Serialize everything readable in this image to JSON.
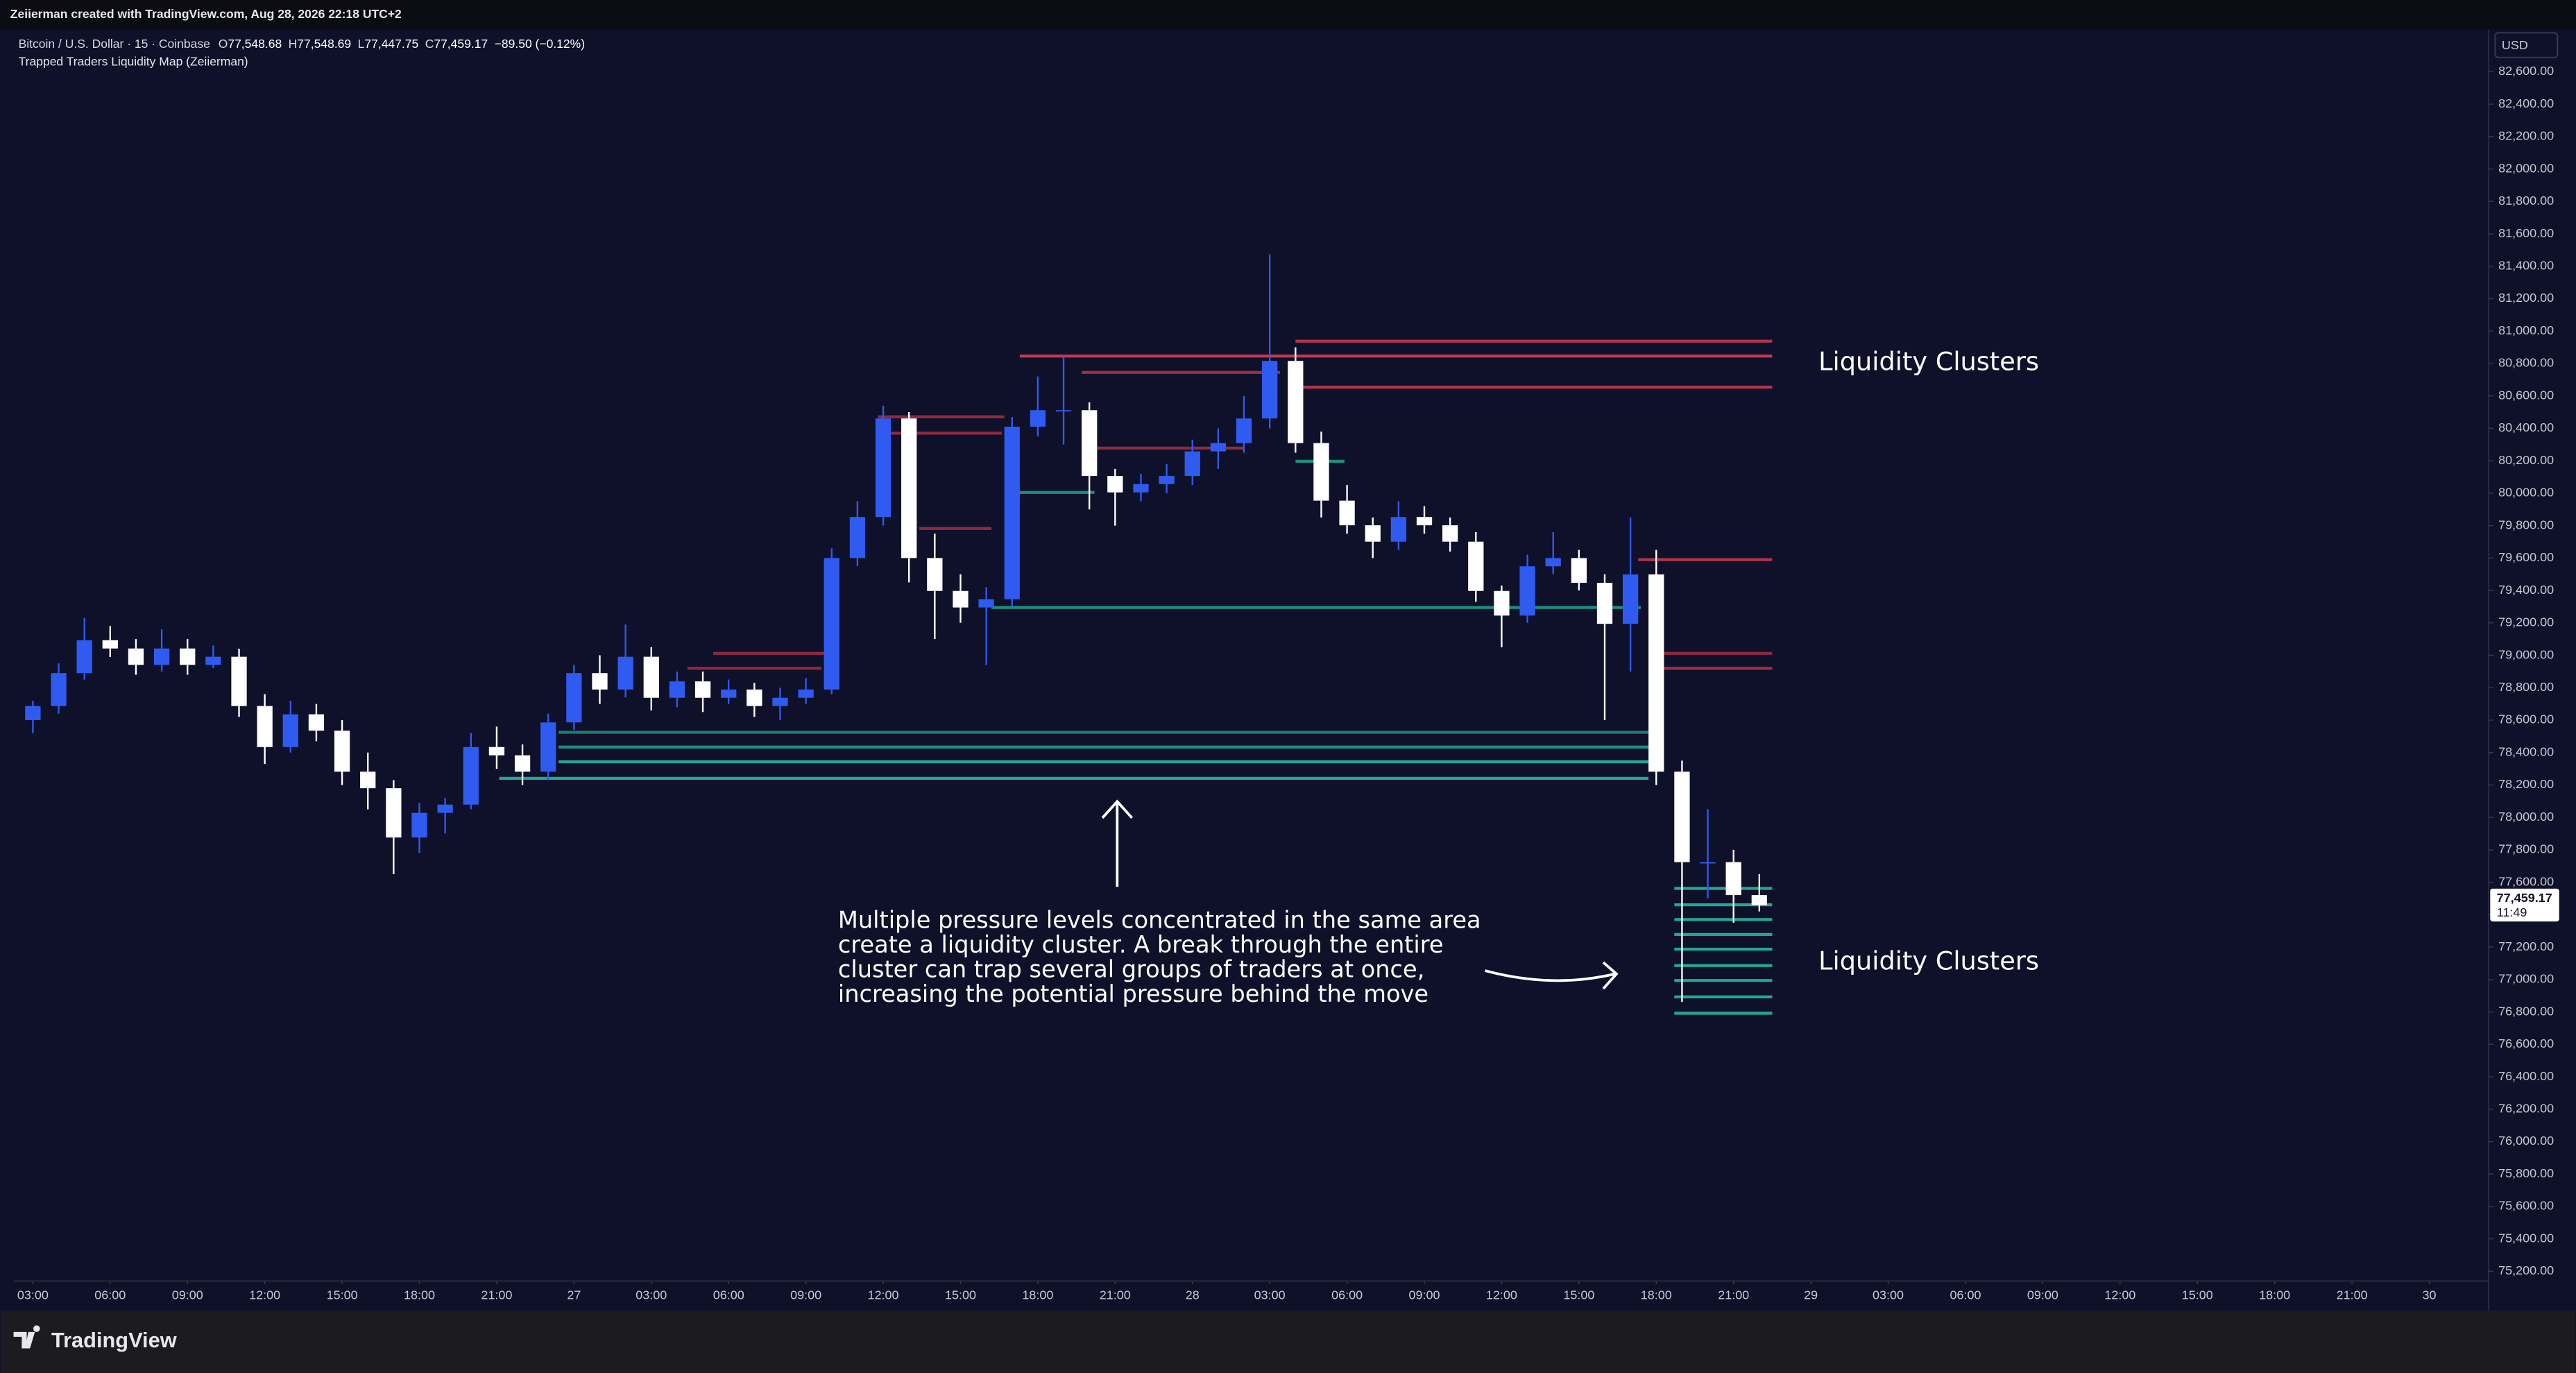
{
  "chart_data": {
    "type": "candlestick",
    "watermark_line": "Zeiierman created with TradingView.com, Aug 28, 2026 22:18 UTC+2",
    "symbol": "Bitcoin / U.S. Dollar · 15 · Coinbase",
    "legend": [
      {
        "key": "O",
        "value": "77,548.68"
      },
      {
        "key": "H",
        "value": "77,548.69"
      },
      {
        "key": "L",
        "value": "77,447.75"
      },
      {
        "key": "C",
        "value": "77,459.17"
      }
    ],
    "change": "−89.50 (−0.12%)",
    "indicator": "Trapped Traders Liquidity Map (Zeiierman)",
    "currency": "USD",
    "last_price_label": "77,459.17",
    "countdown": "11:49",
    "brand": "TradingView",
    "annotations": {
      "clusters_top": "Liquidity Clusters",
      "clusters_bottom": "Liquidity Clusters",
      "explanation": [
        "Multiple pressure levels concentrated in the same area",
        "create a liquidity cluster. A break through the entire",
        "cluster can trap several groups of traders at once,",
        "increasing the potential pressure behind the move"
      ]
    },
    "up_color": "#2f5bf0",
    "down_color": "#ffffff",
    "xlim": [
      2.25,
      98.3
    ],
    "ylim": [
      75140,
      82860
    ],
    "xticks": [
      {
        "value": 3,
        "label": "03:00"
      },
      {
        "value": 6,
        "label": "06:00"
      },
      {
        "value": 9,
        "label": "09:00"
      },
      {
        "value": 12,
        "label": "12:00"
      },
      {
        "value": 15,
        "label": "15:00"
      },
      {
        "value": 18,
        "label": "18:00"
      },
      {
        "value": 21,
        "label": "21:00"
      },
      {
        "value": 24,
        "label": "27"
      },
      {
        "value": 27,
        "label": "03:00"
      },
      {
        "value": 30,
        "label": "06:00"
      },
      {
        "value": 33,
        "label": "09:00"
      },
      {
        "value": 36,
        "label": "12:00"
      },
      {
        "value": 39,
        "label": "15:00"
      },
      {
        "value": 42,
        "label": "18:00"
      },
      {
        "value": 45,
        "label": "21:00"
      },
      {
        "value": 48,
        "label": "28"
      },
      {
        "value": 51,
        "label": "03:00"
      },
      {
        "value": 54,
        "label": "06:00"
      },
      {
        "value": 57,
        "label": "09:00"
      },
      {
        "value": 60,
        "label": "12:00"
      },
      {
        "value": 63,
        "label": "15:00"
      },
      {
        "value": 66,
        "label": "18:00"
      },
      {
        "value": 69,
        "label": "21:00"
      },
      {
        "value": 72,
        "label": "29"
      },
      {
        "value": 75,
        "label": "03:00"
      },
      {
        "value": 78,
        "label": "06:00"
      },
      {
        "value": 81,
        "label": "09:00"
      },
      {
        "value": 84,
        "label": "12:00"
      },
      {
        "value": 87,
        "label": "15:00"
      },
      {
        "value": 90,
        "label": "18:00"
      },
      {
        "value": 93,
        "label": "21:00"
      },
      {
        "value": 96,
        "label": "30"
      }
    ],
    "yticks": [
      {
        "value": 75200,
        "label": "75,200.00"
      },
      {
        "value": 75400,
        "label": "75,400.00"
      },
      {
        "value": 75600,
        "label": "75,600.00"
      },
      {
        "value": 75800,
        "label": "75,800.00"
      },
      {
        "value": 76000,
        "label": "76,000.00"
      },
      {
        "value": 76200,
        "label": "76,200.00"
      },
      {
        "value": 76400,
        "label": "76,400.00"
      },
      {
        "value": 76600,
        "label": "76,600.00"
      },
      {
        "value": 76800,
        "label": "76,800.00"
      },
      {
        "value": 77000,
        "label": "77,000.00"
      },
      {
        "value": 77200,
        "label": "77,200.00"
      },
      {
        "value": 77400,
        "label": "77,400.00"
      },
      {
        "value": 77600,
        "label": "77,600.00"
      },
      {
        "value": 77800,
        "label": "77,800.00"
      },
      {
        "value": 78000,
        "label": "78,000.00"
      },
      {
        "value": 78200,
        "label": "78,200.00"
      },
      {
        "value": 78400,
        "label": "78,400.00"
      },
      {
        "value": 78600,
        "label": "78,600.00"
      },
      {
        "value": 78800,
        "label": "78,800.00"
      },
      {
        "value": 79000,
        "label": "79,000.00"
      },
      {
        "value": 79200,
        "label": "79,200.00"
      },
      {
        "value": 79400,
        "label": "79,400.00"
      },
      {
        "value": 79600,
        "label": "79,600.00"
      },
      {
        "value": 79800,
        "label": "79,800.00"
      },
      {
        "value": 80000,
        "label": "80,000.00"
      },
      {
        "value": 80200,
        "label": "80,200.00"
      },
      {
        "value": 80400,
        "label": "80,400.00"
      },
      {
        "value": 80600,
        "label": "80,600.00"
      },
      {
        "value": 80800,
        "label": "80,800.00"
      },
      {
        "value": 81000,
        "label": "81,000.00"
      },
      {
        "value": 81200,
        "label": "81,200.00"
      },
      {
        "value": 81400,
        "label": "81,400.00"
      },
      {
        "value": 81600,
        "label": "81,600.00"
      },
      {
        "value": 81800,
        "label": "81,800.00"
      },
      {
        "value": 82000,
        "label": "82,000.00"
      },
      {
        "value": 82200,
        "label": "82,200.00"
      },
      {
        "value": 82400,
        "label": "82,400.00"
      },
      {
        "value": 82600,
        "label": "82,600.00"
      }
    ],
    "x": [
      3,
      4,
      5,
      6,
      7,
      8,
      9,
      10,
      11,
      12,
      13,
      14,
      15,
      16,
      17,
      18,
      19,
      20,
      21,
      22,
      23,
      24,
      25,
      26,
      27,
      28,
      29,
      30,
      31,
      32,
      33,
      34,
      35,
      36,
      37,
      38,
      39,
      40,
      41,
      42,
      43,
      44,
      45,
      46,
      47,
      48,
      49,
      50,
      51,
      52,
      53,
      54,
      55,
      56,
      57,
      58,
      59,
      60,
      61,
      62,
      63,
      64,
      65,
      66,
      67,
      68,
      69,
      70
    ],
    "ohlc": [
      [
        78600,
        78720,
        78520,
        78687
      ],
      [
        78687,
        78950,
        78640,
        78890
      ],
      [
        78890,
        79230,
        78850,
        79093
      ],
      [
        79093,
        79180,
        78990,
        79042
      ],
      [
        79042,
        79100,
        78880,
        78941
      ],
      [
        78941,
        79160,
        78900,
        79042
      ],
      [
        79042,
        79100,
        78880,
        78941
      ],
      [
        78941,
        79060,
        78920,
        78991
      ],
      [
        78991,
        79040,
        78620,
        78687
      ],
      [
        78687,
        78760,
        78330,
        78434
      ],
      [
        78434,
        78720,
        78400,
        78636
      ],
      [
        78636,
        78700,
        78470,
        78535
      ],
      [
        78535,
        78600,
        78200,
        78282
      ],
      [
        78282,
        78400,
        78050,
        78180
      ],
      [
        78180,
        78230,
        77650,
        77876
      ],
      [
        77876,
        78090,
        77780,
        78028
      ],
      [
        78028,
        78120,
        77900,
        78079
      ],
      [
        78079,
        78520,
        78050,
        78434
      ],
      [
        78434,
        78560,
        78300,
        78383
      ],
      [
        78383,
        78450,
        78200,
        78282
      ],
      [
        78282,
        78640,
        78230,
        78586
      ],
      [
        78586,
        78940,
        78540,
        78890
      ],
      [
        78890,
        79000,
        78700,
        78789
      ],
      [
        78789,
        79190,
        78740,
        78991
      ],
      [
        78991,
        79050,
        78660,
        78738
      ],
      [
        78738,
        78900,
        78680,
        78839
      ],
      [
        78839,
        78900,
        78650,
        78738
      ],
      [
        78738,
        78850,
        78700,
        78789
      ],
      [
        78789,
        78830,
        78620,
        78687
      ],
      [
        78687,
        78800,
        78600,
        78738
      ],
      [
        78738,
        78860,
        78700,
        78789
      ],
      [
        78789,
        79660,
        78760,
        79600
      ],
      [
        79600,
        79950,
        79550,
        79853
      ],
      [
        79853,
        80540,
        79800,
        80461
      ],
      [
        80461,
        80500,
        79450,
        79600
      ],
      [
        79600,
        79750,
        79100,
        79397
      ],
      [
        79397,
        79500,
        79200,
        79295
      ],
      [
        79295,
        79420,
        78940,
        79346
      ],
      [
        79346,
        80470,
        79300,
        80410
      ],
      [
        80410,
        80720,
        80350,
        80512
      ],
      [
        80512,
        80850,
        80300,
        80512
      ],
      [
        80512,
        80560,
        79900,
        80106
      ],
      [
        80106,
        80150,
        79800,
        80005
      ],
      [
        80005,
        80120,
        79950,
        80056
      ],
      [
        80056,
        80180,
        80000,
        80106
      ],
      [
        80106,
        80330,
        80050,
        80258
      ],
      [
        80258,
        80400,
        80150,
        80309
      ],
      [
        80309,
        80600,
        80250,
        80461
      ],
      [
        80461,
        81474,
        80400,
        80816
      ],
      [
        80816,
        80900,
        80250,
        80309
      ],
      [
        80309,
        80380,
        79850,
        79954
      ],
      [
        79954,
        80050,
        79750,
        79802
      ],
      [
        79802,
        79850,
        79600,
        79701
      ],
      [
        79701,
        79950,
        79650,
        79853
      ],
      [
        79853,
        79920,
        79750,
        79802
      ],
      [
        79802,
        79850,
        79640,
        79701
      ],
      [
        79701,
        79760,
        79330,
        79397
      ],
      [
        79397,
        79430,
        79050,
        79245
      ],
      [
        79245,
        79620,
        79200,
        79549
      ],
      [
        79549,
        79760,
        79500,
        79600
      ],
      [
        79600,
        79650,
        79400,
        79447
      ],
      [
        79447,
        79500,
        78600,
        79194
      ],
      [
        79194,
        79850,
        78900,
        79499
      ],
      [
        79499,
        79650,
        78200,
        78282
      ],
      [
        78282,
        78350,
        76862,
        77724
      ],
      [
        77724,
        78050,
        77500,
        77724
      ],
      [
        77724,
        77800,
        77350,
        77521
      ],
      [
        77521,
        77650,
        77420,
        77459.17
      ]
    ],
    "levels": [
      {
        "price": 80846,
        "start": 41.3,
        "end": 70.5,
        "color": "#c23a52"
      },
      {
        "price": 80745,
        "start": 43.7,
        "end": 51.4,
        "color": "#9e2f45"
      },
      {
        "price": 80938,
        "start": 52.0,
        "end": 70.5,
        "color": "#b0344b"
      },
      {
        "price": 80654,
        "start": 52.0,
        "end": 70.5,
        "color": "#b0344b"
      },
      {
        "price": 80471,
        "start": 35.8,
        "end": 40.7,
        "color": "#8e2a40"
      },
      {
        "price": 80370,
        "start": 35.8,
        "end": 40.6,
        "color": "#8e2a40"
      },
      {
        "price": 80278,
        "start": 44.0,
        "end": 50.0,
        "color": "#8e2a40"
      },
      {
        "price": 79782,
        "start": 37.4,
        "end": 40.2,
        "color": "#8e2a40"
      },
      {
        "price": 79590,
        "start": 65.3,
        "end": 70.5,
        "color": "#b0344b"
      },
      {
        "price": 79012,
        "start": 65.7,
        "end": 70.5,
        "color": "#8e2a40"
      },
      {
        "price": 78920,
        "start": 65.7,
        "end": 70.5,
        "color": "#9e2f45"
      },
      {
        "price": 79012,
        "start": 29.4,
        "end": 33.9,
        "color": "#8e2a40"
      },
      {
        "price": 78920,
        "start": 28.4,
        "end": 33.6,
        "color": "#8e2a40"
      },
      {
        "price": 80005,
        "start": 40.9,
        "end": 44.2,
        "color": "#1a8f7c"
      },
      {
        "price": 80197,
        "start": 52.0,
        "end": 53.9,
        "color": "#1a8f7c"
      },
      {
        "price": 79295,
        "start": 40.2,
        "end": 65.4,
        "color": "#1a8f7c"
      },
      {
        "price": 78525,
        "start": 23.4,
        "end": 65.7,
        "color": "#1a7f70"
      },
      {
        "price": 78434,
        "start": 23.4,
        "end": 65.7,
        "color": "#1a8f7c"
      },
      {
        "price": 78343,
        "start": 23.4,
        "end": 65.7,
        "color": "#22a890"
      },
      {
        "price": 78241,
        "start": 21.1,
        "end": 65.7,
        "color": "#22a890"
      },
      {
        "price": 77562,
        "start": 66.7,
        "end": 70.5,
        "color": "#22a890"
      },
      {
        "price": 77461,
        "start": 66.7,
        "end": 70.5,
        "color": "#22a890"
      },
      {
        "price": 77370,
        "start": 66.7,
        "end": 70.5,
        "color": "#22a890"
      },
      {
        "price": 77278,
        "start": 66.7,
        "end": 70.5,
        "color": "#22a890"
      },
      {
        "price": 77187,
        "start": 66.7,
        "end": 70.5,
        "color": "#22a890"
      },
      {
        "price": 77086,
        "start": 66.7,
        "end": 70.5,
        "color": "#22a890"
      },
      {
        "price": 76994,
        "start": 66.7,
        "end": 70.5,
        "color": "#22a890"
      },
      {
        "price": 76893,
        "start": 66.7,
        "end": 70.5,
        "color": "#22a890"
      },
      {
        "price": 76792,
        "start": 66.7,
        "end": 70.5,
        "color": "#22a890"
      }
    ]
  }
}
